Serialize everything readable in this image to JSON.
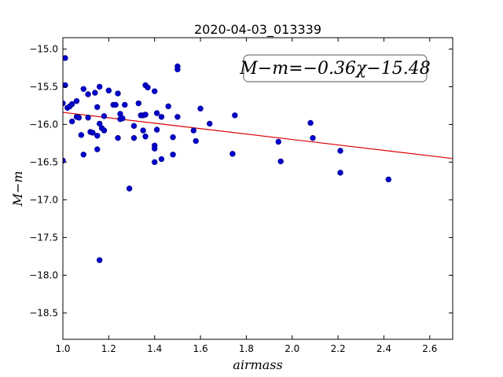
{
  "chart_data": {
    "type": "scatter",
    "title": "2020-04-03_013339",
    "xlabel": "airmass",
    "ylabel": "M−m",
    "xlim": [
      1.0,
      2.7
    ],
    "ylim": [
      -18.85,
      -14.85
    ],
    "y_inverted": true,
    "xticks": [
      1.0,
      1.2,
      1.4,
      1.6,
      1.8,
      2.0,
      2.2,
      2.4,
      2.6
    ],
    "xtick_labels": [
      "1.0",
      "1.2",
      "1.4",
      "1.6",
      "1.8",
      "2.0",
      "2.2",
      "2.4",
      "2.6"
    ],
    "yticks": [
      -15.0,
      -15.5,
      -16.0,
      -16.5,
      -17.0,
      -17.5,
      -18.0,
      -18.5
    ],
    "ytick_labels": [
      "−15.0",
      "−15.5",
      "−16.0",
      "−16.5",
      "−17.0",
      "−17.5",
      "−18.0",
      "−18.5"
    ],
    "grid": false,
    "annotation": "M−m=−0.36χ−15.48",
    "annotation_position": "top-right",
    "series": [
      {
        "kind": "points",
        "color": "#0000cc",
        "points": [
          [
            1.0,
            -15.72
          ],
          [
            1.0,
            -16.48
          ],
          [
            1.01,
            -15.12
          ],
          [
            1.01,
            -15.48
          ],
          [
            1.02,
            -15.78
          ],
          [
            1.03,
            -15.76
          ],
          [
            1.04,
            -15.73
          ],
          [
            1.04,
            -15.96
          ],
          [
            1.06,
            -15.69
          ],
          [
            1.06,
            -15.9
          ],
          [
            1.07,
            -15.91
          ],
          [
            1.08,
            -16.14
          ],
          [
            1.09,
            -15.53
          ],
          [
            1.09,
            -16.4
          ],
          [
            1.11,
            -15.6
          ],
          [
            1.11,
            -15.91
          ],
          [
            1.12,
            -16.1
          ],
          [
            1.13,
            -16.11
          ],
          [
            1.14,
            -15.58
          ],
          [
            1.15,
            -15.77
          ],
          [
            1.15,
            -16.15
          ],
          [
            1.15,
            -16.33
          ],
          [
            1.16,
            -15.5
          ],
          [
            1.16,
            -15.99
          ],
          [
            1.16,
            -17.8
          ],
          [
            1.17,
            -16.05
          ],
          [
            1.18,
            -15.89
          ],
          [
            1.18,
            -16.08
          ],
          [
            1.2,
            -15.55
          ],
          [
            1.22,
            -15.74
          ],
          [
            1.23,
            -15.74
          ],
          [
            1.24,
            -15.59
          ],
          [
            1.24,
            -16.18
          ],
          [
            1.25,
            -15.86
          ],
          [
            1.25,
            -15.93
          ],
          [
            1.26,
            -15.92
          ],
          [
            1.27,
            -15.74
          ],
          [
            1.29,
            -16.85
          ],
          [
            1.31,
            -16.02
          ],
          [
            1.31,
            -16.18
          ],
          [
            1.33,
            -15.72
          ],
          [
            1.34,
            -15.88
          ],
          [
            1.35,
            -15.88
          ],
          [
            1.35,
            -16.08
          ],
          [
            1.36,
            -15.87
          ],
          [
            1.36,
            -16.16
          ],
          [
            1.36,
            -15.48
          ],
          [
            1.37,
            -15.51
          ],
          [
            1.4,
            -15.56
          ],
          [
            1.4,
            -16.28
          ],
          [
            1.4,
            -16.32
          ],
          [
            1.4,
            -16.5
          ],
          [
            1.41,
            -15.85
          ],
          [
            1.41,
            -16.07
          ],
          [
            1.43,
            -15.9
          ],
          [
            1.43,
            -16.46
          ],
          [
            1.46,
            -15.76
          ],
          [
            1.48,
            -16.17
          ],
          [
            1.48,
            -16.4
          ],
          [
            1.5,
            -15.23
          ],
          [
            1.5,
            -15.27
          ],
          [
            1.5,
            -15.9
          ],
          [
            1.57,
            -16.08
          ],
          [
            1.58,
            -16.22
          ],
          [
            1.6,
            -15.79
          ],
          [
            1.64,
            -15.99
          ],
          [
            1.74,
            -16.39
          ],
          [
            1.75,
            -15.88
          ],
          [
            1.94,
            -16.23
          ],
          [
            1.95,
            -16.49
          ],
          [
            2.08,
            -15.98
          ],
          [
            2.09,
            -16.18
          ],
          [
            2.21,
            -16.35
          ],
          [
            2.21,
            -16.64
          ],
          [
            2.42,
            -16.73
          ]
        ]
      },
      {
        "kind": "fit_line",
        "color": "#dd0000",
        "slope": -0.36,
        "intercept": -15.48
      }
    ]
  }
}
